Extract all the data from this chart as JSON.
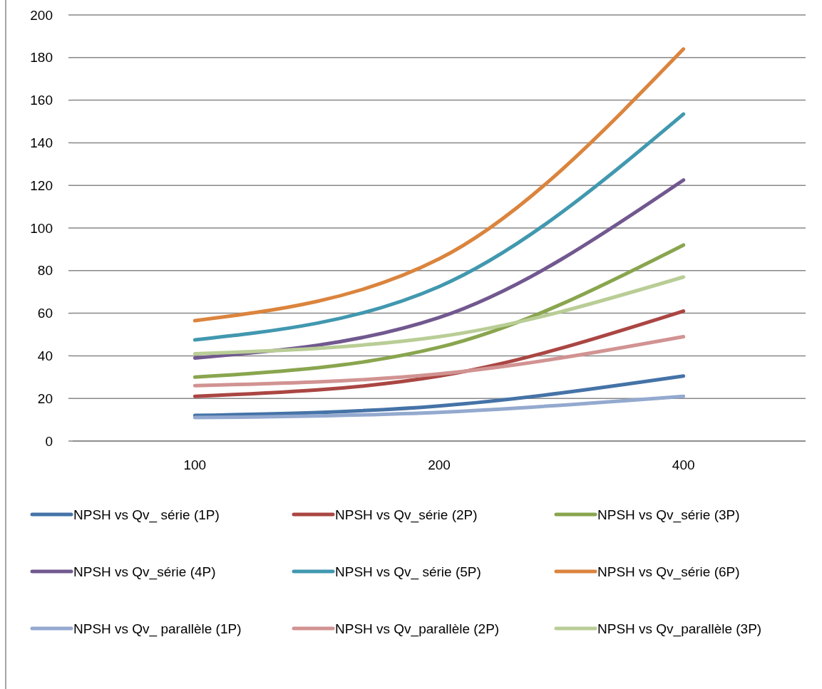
{
  "chart_data": {
    "type": "line",
    "categories": [
      "100",
      "200",
      "400"
    ],
    "series": [
      {
        "name": "NPSH vs Qv_ série (1P)",
        "color": "#4573a7",
        "values": [
          12,
          16.5,
          30.5
        ]
      },
      {
        "name": "NPSH vs Qv_série (2P)",
        "color": "#aa4643",
        "values": [
          21,
          30.5,
          61
        ]
      },
      {
        "name": "NPSH vs Qv_série (3P)",
        "color": "#89a54e",
        "values": [
          30,
          44,
          92
        ]
      },
      {
        "name": "NPSH vs Qv_série (4P)",
        "color": "#71588f",
        "values": [
          39,
          58,
          122.5
        ]
      },
      {
        "name": "NPSH vs Qv_ série (5P)",
        "color": "#4198af",
        "values": [
          47.5,
          72.5,
          153.5
        ]
      },
      {
        "name": "NPSH vs Qv_série (6P)",
        "color": "#db843d",
        "values": [
          56.5,
          85.5,
          184
        ]
      },
      {
        "name": "NPSH vs Qv_ parallèle (1P)",
        "color": "#93a9cf",
        "values": [
          11,
          13.5,
          21
        ]
      },
      {
        "name": "NPSH vs Qv_parallèle (2P)",
        "color": "#d19392",
        "values": [
          26,
          31.5,
          49
        ]
      },
      {
        "name": "NPSH vs Qv_parallèle (3P)",
        "color": "#b9cd96",
        "values": [
          41,
          49,
          77
        ]
      }
    ],
    "ylim": [
      0,
      200
    ],
    "yticks": [
      0,
      20,
      40,
      60,
      80,
      100,
      120,
      140,
      160,
      180,
      200
    ],
    "grid": "y",
    "legend": "bottom",
    "marker": "none",
    "line_style": "solid"
  }
}
